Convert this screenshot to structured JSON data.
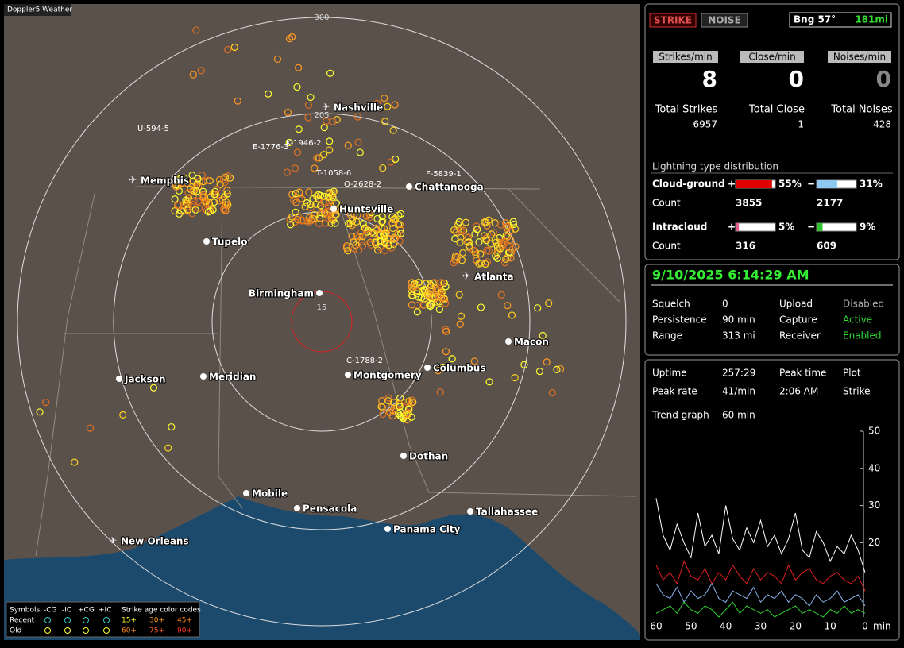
{
  "app_title": "Doppler5 Weather",
  "map": {
    "range_labels": [
      "300",
      "205",
      "15"
    ],
    "cities": [
      "Nashville",
      "Memphis",
      "Chattanooga",
      "Huntsville",
      "Tupelo",
      "Atlanta",
      "Birmingham",
      "Macon",
      "Jackson",
      "Meridian",
      "Montgomery",
      "Columbus",
      "Dothan",
      "Mobile",
      "Pensacola",
      "Tallahassee",
      "Panama City",
      "New Orleans"
    ],
    "storm_labels": [
      "U-594-5",
      "K-1946-2",
      "E-1776-3",
      "T-1058-6",
      "O-2628-2",
      "F-5839-1",
      "C-1788-2"
    ],
    "legend": {
      "symbols_label": "Symbols",
      "symbols": [
        "-CG",
        "-IC",
        "+CG",
        "+IC"
      ],
      "age_title": "Strike age color codes",
      "rows": [
        "Recent",
        "Old"
      ],
      "ages": [
        "15+",
        "30+",
        "45+",
        "60+",
        "75+",
        "90+"
      ]
    }
  },
  "status": {
    "strike": "STRIKE",
    "noise": "NOISE",
    "bearing": "Bng 57°",
    "distance": "181mi"
  },
  "rates": {
    "labels": [
      "Strikes/min",
      "Close/min",
      "Noises/min"
    ],
    "values": [
      8,
      0,
      0
    ],
    "total_labels": [
      "Total Strikes",
      "Total Close",
      "Total Noises"
    ],
    "totals": [
      6957,
      1,
      428
    ]
  },
  "distribution": {
    "title": "Lightning type distribution",
    "count_label": "Count",
    "rows": [
      {
        "name": "Cloud-ground",
        "plus_sign": "+",
        "plus": {
          "value": 55,
          "label": "55%"
        },
        "minus_sign": "−",
        "minus": {
          "value": 31,
          "label": "31%"
        },
        "counts": [
          3855,
          2177
        ]
      },
      {
        "name": "Intracloud",
        "plus_sign": "+",
        "plus": {
          "value": 5,
          "label": "5%"
        },
        "minus_sign": "−",
        "minus": {
          "value": 9,
          "label": "9%"
        },
        "counts": [
          316,
          609
        ]
      }
    ]
  },
  "datetime": "9/10/2025 6:14:29 AM",
  "settings": [
    [
      "Squelch",
      "0"
    ],
    [
      "Persistence",
      "90 min"
    ],
    [
      "Range",
      "313 mi"
    ],
    [
      "Upload",
      "Disabled"
    ],
    [
      "Capture",
      "Active"
    ],
    [
      "Receiver",
      "Enabled"
    ]
  ],
  "stats": [
    [
      "Uptime",
      "257:29"
    ],
    [
      "Peak time",
      "2:06 AM"
    ],
    [
      "Plot",
      "Strike"
    ],
    [
      "Peak rate",
      "41/min"
    ],
    [
      "Trend graph",
      "60 min"
    ]
  ],
  "chart_data": {
    "type": "line",
    "x_unit": "min",
    "x": [
      60,
      58,
      56,
      54,
      52,
      50,
      48,
      46,
      44,
      42,
      40,
      38,
      36,
      34,
      32,
      30,
      28,
      26,
      24,
      22,
      20,
      18,
      16,
      14,
      12,
      10,
      8,
      6,
      4,
      2,
      0
    ],
    "xlim": [
      60,
      0
    ],
    "xticks": [
      60,
      50,
      40,
      30,
      20,
      10,
      0
    ],
    "ylim": [
      0,
      50
    ],
    "yticks": [
      20,
      30,
      40,
      50
    ],
    "series": [
      {
        "color": "#ffffff",
        "values": [
          32,
          22,
          18,
          25,
          20,
          16,
          28,
          19,
          22,
          17,
          30,
          21,
          18,
          24,
          20,
          26,
          19,
          22,
          17,
          21,
          28,
          18,
          16,
          23,
          20,
          15,
          19,
          17,
          22,
          18,
          12
        ]
      },
      {
        "color": "#e02020",
        "values": [
          14,
          10,
          12,
          9,
          15,
          11,
          10,
          13,
          9,
          12,
          10,
          14,
          11,
          9,
          13,
          10,
          12,
          11,
          9,
          14,
          10,
          12,
          13,
          10,
          9,
          11,
          12,
          10,
          9,
          11,
          7
        ]
      },
      {
        "color": "#8ab4f0",
        "values": [
          9,
          6,
          5,
          8,
          4,
          7,
          5,
          6,
          9,
          5,
          4,
          7,
          6,
          5,
          8,
          4,
          6,
          5,
          7,
          4,
          6,
          5,
          3,
          6,
          4,
          5,
          7,
          4,
          5,
          6,
          3
        ]
      },
      {
        "color": "#30d030",
        "values": [
          1,
          2,
          3,
          1,
          4,
          2,
          1,
          3,
          2,
          0,
          2,
          4,
          1,
          3,
          2,
          1,
          2,
          0,
          1,
          2,
          3,
          1,
          2,
          1,
          0,
          2,
          1,
          3,
          1,
          2,
          1
        ]
      }
    ]
  }
}
